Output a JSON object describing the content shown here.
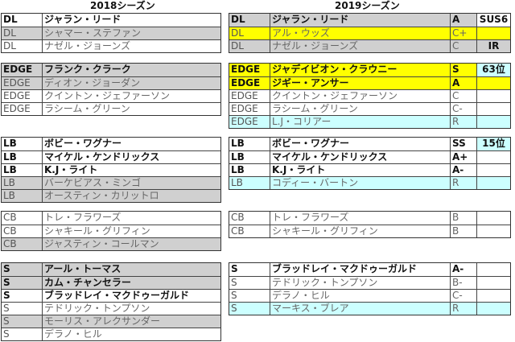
{
  "left": {
    "title": "2018シーズン",
    "sections": [
      {
        "rows": [
          {
            "pos": "DL",
            "name": "ジャラン・リード",
            "bold": true,
            "fill": "white"
          },
          {
            "pos": "DL",
            "name": "シャマー・ステファン",
            "bold": false,
            "fill": "gray"
          },
          {
            "pos": "DL",
            "name": "ナゼル・ジョーンズ",
            "bold": false,
            "fill": "white"
          }
        ]
      },
      {
        "rows": [
          {
            "pos": "EDGE",
            "name": "フランク・クラーク",
            "bold": true,
            "fill": "gray"
          },
          {
            "pos": "EDGE",
            "name": "ディオン・ジョーダン",
            "bold": false,
            "fill": "gray"
          },
          {
            "pos": "EDGE",
            "name": "クイントン・ジェファーソン",
            "bold": false,
            "fill": "white"
          },
          {
            "pos": "EDGE",
            "name": "ラシーム・グリーン",
            "bold": false,
            "fill": "white"
          }
        ]
      },
      {
        "rows": [
          {
            "pos": "LB",
            "name": "ボビー・ワグナー",
            "bold": true,
            "fill": "white"
          },
          {
            "pos": "LB",
            "name": "マイケル・ケンドリックス",
            "bold": true,
            "fill": "white"
          },
          {
            "pos": "LB",
            "name": "K.J・ライト",
            "bold": true,
            "fill": "white"
          },
          {
            "pos": "LB",
            "name": "バーケビアス・ミンゴ",
            "bold": false,
            "fill": "gray"
          },
          {
            "pos": "LB",
            "name": "オースティン・カリットロ",
            "bold": false,
            "fill": "gray"
          }
        ]
      },
      {
        "rows": [
          {
            "pos": "CB",
            "name": "トレ・フラワーズ",
            "bold": false,
            "fill": "white"
          },
          {
            "pos": "CB",
            "name": "シャキール・グリフィン",
            "bold": false,
            "fill": "white"
          },
          {
            "pos": "CB",
            "name": "ジャスティン・コールマン",
            "bold": false,
            "fill": "gray"
          }
        ]
      },
      {
        "rows": [
          {
            "pos": "S",
            "name": "アール・トーマス",
            "bold": true,
            "fill": "gray"
          },
          {
            "pos": "S",
            "name": "カム・チャンセラー",
            "bold": true,
            "fill": "gray"
          },
          {
            "pos": "S",
            "name": "ブラッドレイ・マクドゥーガルド",
            "bold": true,
            "fill": "white"
          },
          {
            "pos": "S",
            "name": "テドリック・トンプソン",
            "bold": false,
            "fill": "white"
          },
          {
            "pos": "S",
            "name": "モーリス・アレクサンダー",
            "bold": false,
            "fill": "gray"
          },
          {
            "pos": "S",
            "name": "デラノ・ヒル",
            "bold": false,
            "fill": "white"
          }
        ]
      }
    ]
  },
  "right": {
    "title": "2019シーズン",
    "sections": [
      {
        "rows": [
          {
            "pos": "DL",
            "name": "ジャラン・リード",
            "grade": "A",
            "note": "SUS6",
            "bold": true,
            "fill": "gray",
            "noteFill": "white"
          },
          {
            "pos": "DL",
            "name": "アル・ウッズ",
            "grade": "C+",
            "note": "",
            "bold": false,
            "fill": "yellow",
            "noteFill": "yellow"
          },
          {
            "pos": "DL",
            "name": "ナゼル・ジョーンズ",
            "grade": "C",
            "note": "IR",
            "bold": false,
            "fill": "gray",
            "noteFill": "gray"
          }
        ]
      },
      {
        "rows": [
          {
            "pos": "EDGE",
            "name": "ジャデイビオン・クラウニー",
            "grade": "S",
            "note": "63位",
            "bold": true,
            "fill": "yellow",
            "noteFill": "cyan"
          },
          {
            "pos": "EDGE",
            "name": "ジギー・アンサー",
            "grade": "A",
            "note": "",
            "bold": true,
            "fill": "yellow",
            "noteFill": "yellow"
          },
          {
            "pos": "EDGE",
            "name": "クイントン・ジェファーソン",
            "grade": "C",
            "note": "",
            "bold": false,
            "fill": "white",
            "noteFill": "white"
          },
          {
            "pos": "EDGE",
            "name": "ラシーム・グリーン",
            "grade": "C-",
            "note": "",
            "bold": false,
            "fill": "white",
            "noteFill": "white"
          },
          {
            "pos": "EDGE",
            "name": "L.J・コリアー",
            "grade": "R",
            "note": "",
            "bold": false,
            "fill": "cyan",
            "noteFill": "cyan"
          }
        ]
      },
      {
        "rows": [
          {
            "pos": "LB",
            "name": "ボビー・ワグナー",
            "grade": "SS",
            "note": "15位",
            "bold": true,
            "fill": "white",
            "noteFill": "cyan"
          },
          {
            "pos": "LB",
            "name": "マイケル・ケンドリックス",
            "grade": "A+",
            "note": "",
            "bold": true,
            "fill": "white",
            "noteFill": "white"
          },
          {
            "pos": "LB",
            "name": "K.J・ライト",
            "grade": "A-",
            "note": "",
            "bold": true,
            "fill": "white",
            "noteFill": "white"
          },
          {
            "pos": "LB",
            "name": "コディー・バートン",
            "grade": "R",
            "note": "",
            "bold": false,
            "fill": "cyan",
            "noteFill": "cyan"
          }
        ]
      },
      {
        "rows": [
          {
            "pos": "CB",
            "name": "トレ・フラワーズ",
            "grade": "B",
            "note": "",
            "bold": false,
            "fill": "white",
            "noteFill": "white"
          },
          {
            "pos": "CB",
            "name": "シャキール・グリフィン",
            "grade": "B",
            "note": "",
            "bold": false,
            "fill": "white",
            "noteFill": "white"
          }
        ]
      },
      {
        "rows": [
          {
            "pos": "S",
            "name": "ブラッドレイ・マクドゥーガルド",
            "grade": "A-",
            "note": "",
            "bold": true,
            "fill": "white",
            "noteFill": "white"
          },
          {
            "pos": "S",
            "name": "テドリック・トンプソン",
            "grade": "B-",
            "note": "",
            "bold": false,
            "fill": "white",
            "noteFill": "white"
          },
          {
            "pos": "S",
            "name": "デラノ・ヒル",
            "grade": "C-",
            "note": "",
            "bold": false,
            "fill": "white",
            "noteFill": "white"
          },
          {
            "pos": "S",
            "name": "マーキス・ブレア",
            "grade": "R",
            "note": "",
            "bold": false,
            "fill": "cyan",
            "noteFill": "cyan"
          }
        ]
      }
    ]
  },
  "colors": {
    "gray": "#d0d0d0",
    "yellow": "#ffff00",
    "cyan": "#ccffff",
    "white": "#ffffff"
  }
}
